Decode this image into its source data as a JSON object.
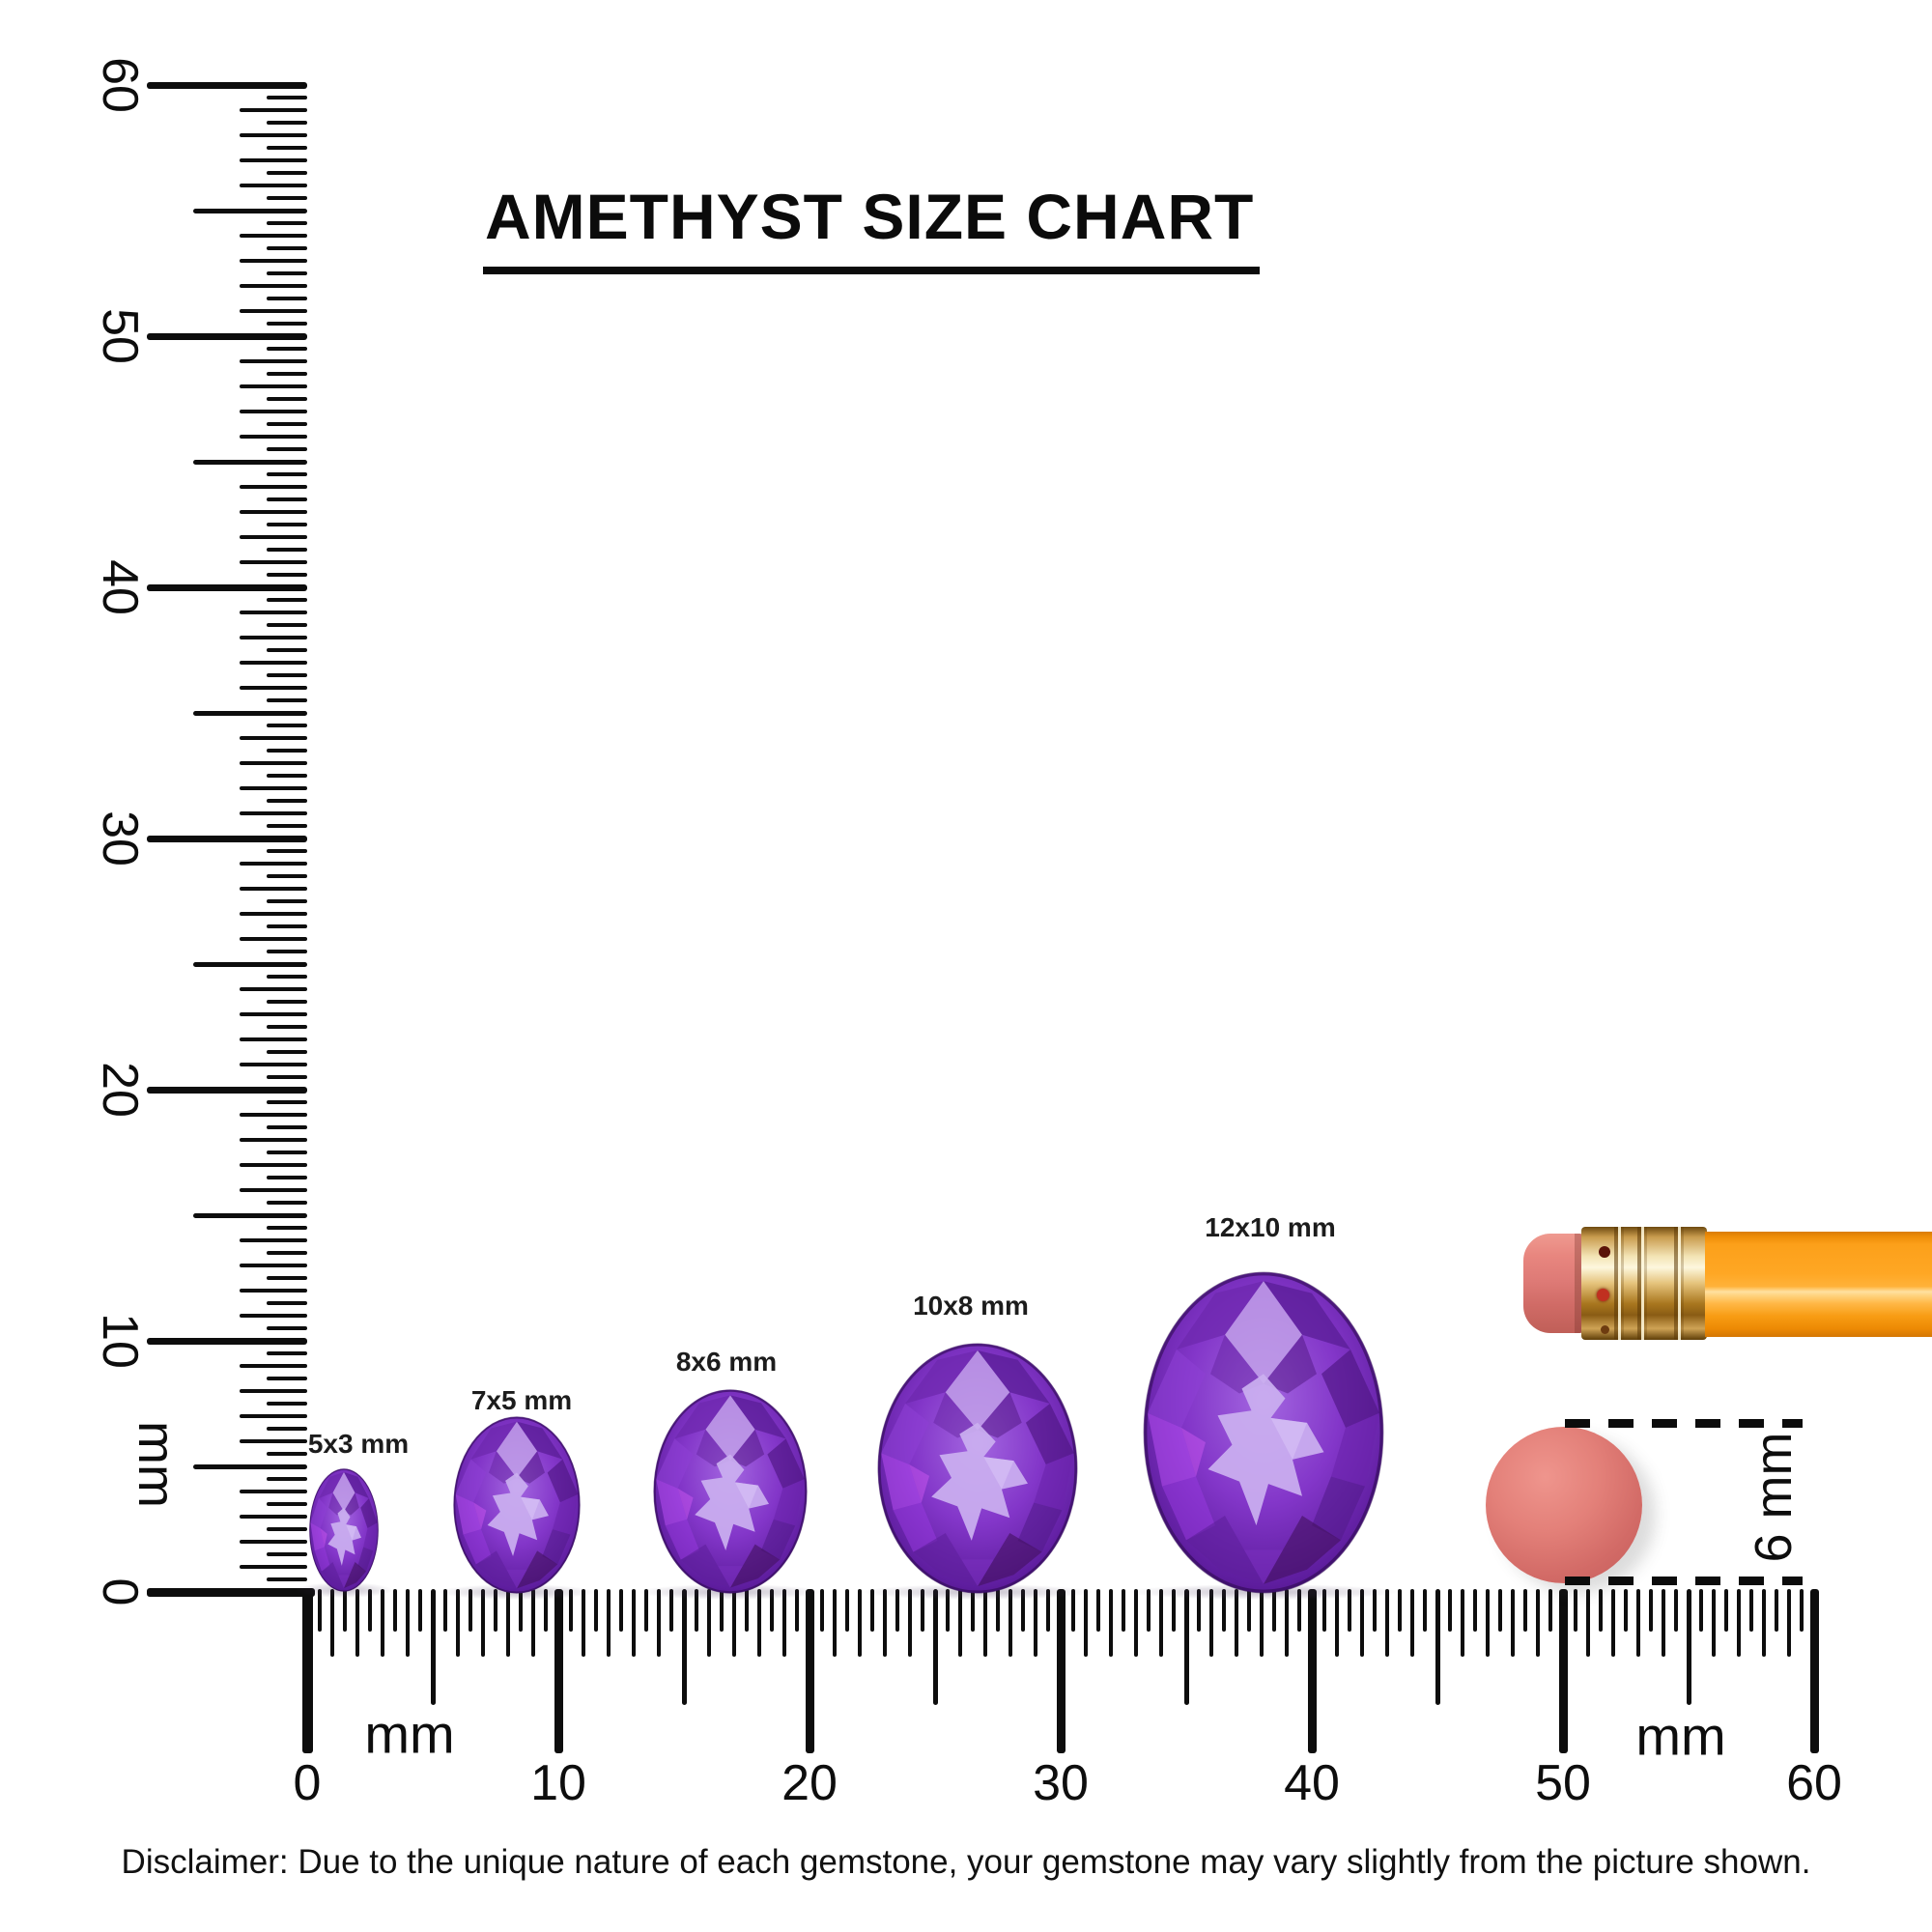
{
  "title": "AMETHYST SIZE CHART",
  "vertical_ruler": {
    "unit": "mm",
    "labels": [
      "60",
      "50",
      "40",
      "30",
      "20",
      "10",
      "0"
    ],
    "range_mm": [
      0,
      60
    ]
  },
  "horizontal_ruler": {
    "unit_labels": [
      "mm",
      "mm"
    ],
    "labels": [
      "0",
      "10",
      "20",
      "30",
      "40",
      "50",
      "60"
    ],
    "range_mm": [
      0,
      60
    ]
  },
  "gemstones": [
    {
      "label": "5x3 mm",
      "width_mm": 3,
      "height_mm": 5,
      "ruler_position_mm": 1.5
    },
    {
      "label": "7x5 mm",
      "width_mm": 5,
      "height_mm": 7,
      "ruler_position_mm": 8.3
    },
    {
      "label": "8x6 mm",
      "width_mm": 6,
      "height_mm": 8,
      "ruler_position_mm": 16.8
    },
    {
      "label": "10x8 mm",
      "width_mm": 8,
      "height_mm": 10,
      "ruler_position_mm": 26.7
    },
    {
      "label": "12x10 mm",
      "width_mm": 10,
      "height_mm": 12,
      "ruler_position_mm": 38.1
    }
  ],
  "reference_objects": {
    "eraser_dot_measurement": "6 mm"
  },
  "disclaimer": "Disclaimer: Due to the unique nature of each gemstone, your gemstone may vary slightly from the picture shown.",
  "colors": {
    "ink": "#0d0d0d",
    "amethyst_dark": "#45106e",
    "amethyst_mid": "#8336c9",
    "amethyst_light": "#cbb0f0",
    "amethyst_magenta": "#c050f0",
    "pencil_body_orange": "#ffa724",
    "pencil_ferrule_gold": "#e5c37c",
    "eraser_pink": "#e38079"
  }
}
